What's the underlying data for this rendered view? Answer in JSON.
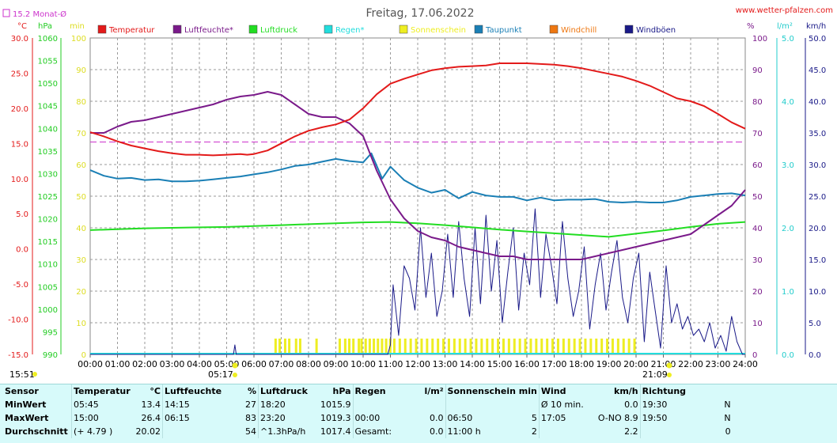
{
  "title": "Freitag, 17.06.2022",
  "website": "www.wetter-pfalzen.com",
  "monthly_avg_label": "15.2 Monat-Ø",
  "left_axis_units": [
    "°C",
    "hPa",
    "min"
  ],
  "right_axis_units": [
    "%",
    "l/m²",
    "km/h"
  ],
  "sunrise": {
    "time": "05:17"
  },
  "sunset": {
    "time": "21:09"
  },
  "moon_time": "15:51",
  "legend": [
    {
      "label": "Temperatur",
      "color": "#e31a1a"
    },
    {
      "label": "Luftfeuchte*",
      "color": "#7a1a8a"
    },
    {
      "label": "Luftdruck",
      "color": "#22dd22"
    },
    {
      "label": "Regen*",
      "color": "#22dddd"
    },
    {
      "label": "Sonnenschein",
      "color": "#eeee22"
    },
    {
      "label": "Taupunkt",
      "color": "#1a7fb5"
    },
    {
      "label": "Windchill",
      "color": "#ee7711"
    },
    {
      "label": "Windböen",
      "color": "#1a1a88"
    }
  ],
  "chart_data": {
    "type": "line",
    "title": "Freitag, 17.06.2022",
    "x_ticks": [
      "00:00",
      "01:00",
      "02:00",
      "03:00",
      "04:00",
      "05:00",
      "06:00",
      "07:00",
      "08:00",
      "09:00",
      "10:00",
      "11:00",
      "12:00",
      "13:00",
      "14:00",
      "15:00",
      "16:00",
      "17:00",
      "18:00",
      "19:00",
      "20:00",
      "21:00",
      "22:00",
      "23:00",
      "24:00"
    ],
    "axes": {
      "temperature_c": {
        "ticks": [
          "30.0",
          "25.0",
          "20.0",
          "15.0",
          "10.0",
          "5.0",
          "0.0",
          "-5.0",
          "-10.0",
          "-15.0"
        ],
        "range": [
          -15,
          30
        ]
      },
      "pressure_hpa": {
        "ticks": [
          "1060",
          "1055",
          "1050",
          "1045",
          "1040",
          "1035",
          "1030",
          "1025",
          "1020",
          "1015",
          "1010",
          "1005",
          "1000",
          "995",
          "990"
        ],
        "range": [
          990,
          1060
        ]
      },
      "sunshine_min": {
        "ticks": [
          "100",
          "90",
          "80",
          "70",
          "60",
          "50",
          "40",
          "30",
          "20",
          "10",
          "0"
        ],
        "range": [
          0,
          100
        ]
      },
      "humidity_pct": {
        "ticks": [
          "100",
          "90",
          "80",
          "70",
          "60",
          "50",
          "40",
          "30",
          "20",
          "10",
          "0"
        ],
        "range": [
          0,
          100
        ]
      },
      "rain_lm2": {
        "ticks": [
          "5.0",
          "4.0",
          "3.0",
          "2.0",
          "1.0",
          "0.0"
        ],
        "range": [
          0,
          5
        ]
      },
      "wind_kmh": {
        "ticks": [
          "50.0",
          "45.0",
          "40.0",
          "35.0",
          "30.0",
          "25.0",
          "20.0",
          "15.0",
          "10.0",
          "5.0",
          "0.0"
        ],
        "range": [
          0,
          50
        ]
      }
    },
    "grid": true,
    "monthly_avg_temperature": 15.2,
    "series": [
      {
        "name": "Temperatur",
        "axis": "temperature_c",
        "color": "#e31a1a",
        "x": [
          0,
          0.5,
          1,
          1.5,
          2,
          2.5,
          3,
          3.5,
          4,
          4.5,
          5,
          5.5,
          5.75,
          6,
          6.5,
          7,
          7.5,
          8,
          8.5,
          9,
          9.5,
          10,
          10.5,
          11,
          11.5,
          12,
          12.5,
          13,
          13.5,
          14,
          14.5,
          15,
          15.5,
          16,
          16.5,
          17,
          17.5,
          18,
          18.5,
          19,
          19.5,
          20,
          20.5,
          21,
          21.5,
          22,
          22.5,
          23,
          23.5,
          24
        ],
        "y": [
          16.6,
          16.0,
          15.3,
          14.7,
          14.3,
          13.9,
          13.6,
          13.4,
          13.4,
          13.3,
          13.4,
          13.5,
          13.4,
          13.5,
          14.0,
          15.0,
          16.0,
          16.8,
          17.3,
          17.7,
          18.4,
          20.0,
          22.0,
          23.5,
          24.2,
          24.8,
          25.4,
          25.7,
          25.9,
          26.0,
          26.1,
          26.4,
          26.4,
          26.4,
          26.3,
          26.2,
          26.0,
          25.7,
          25.3,
          24.9,
          24.5,
          23.9,
          23.2,
          22.3,
          21.4,
          21.0,
          20.3,
          19.2,
          18.0,
          17.1
        ]
      },
      {
        "name": "Luftfeuchte*",
        "axis": "humidity_pct",
        "color": "#7a1a8a",
        "x": [
          0,
          0.5,
          1,
          1.5,
          2,
          2.5,
          3,
          3.5,
          4,
          4.5,
          5,
          5.5,
          6,
          6.5,
          7,
          7.5,
          8,
          8.5,
          9,
          9.5,
          10,
          10.5,
          11,
          11.5,
          12,
          12.5,
          13,
          13.5,
          14,
          14.5,
          15,
          15.5,
          16,
          16.5,
          17,
          17.5,
          18,
          18.5,
          19,
          19.5,
          20,
          20.5,
          21,
          21.5,
          22,
          22.5,
          23,
          23.5,
          24
        ],
        "y": [
          70,
          70,
          72,
          73.5,
          74,
          75,
          76,
          77,
          78,
          79,
          80.5,
          81.5,
          82,
          83,
          82,
          79,
          76,
          75,
          75,
          73,
          69,
          58,
          49,
          43,
          39,
          37,
          36,
          34,
          33,
          32,
          31,
          31,
          30,
          30,
          30,
          30,
          30,
          31,
          32,
          33,
          34,
          35,
          36,
          37,
          38,
          41,
          44,
          47,
          52
        ]
      },
      {
        "name": "Luftdruck",
        "axis": "pressure_hpa",
        "color": "#22dd22",
        "x": [
          0,
          1,
          2,
          3,
          4,
          5,
          6,
          7,
          8,
          9,
          10,
          11,
          12,
          13,
          14,
          15,
          16,
          17,
          18,
          19,
          20,
          21,
          22,
          23,
          24
        ],
        "y": [
          1017.5,
          1017.7,
          1017.9,
          1018.0,
          1018.1,
          1018.2,
          1018.4,
          1018.6,
          1018.8,
          1019.0,
          1019.2,
          1019.3,
          1019.0,
          1018.6,
          1018.1,
          1017.6,
          1017.2,
          1016.8,
          1016.4,
          1016.0,
          1016.7,
          1017.4,
          1018.2,
          1018.9,
          1019.3
        ]
      },
      {
        "name": "Taupunkt",
        "axis": "temperature_c",
        "color": "#1a7fb5",
        "x": [
          0,
          0.5,
          1,
          1.5,
          2,
          2.5,
          3,
          3.5,
          4,
          4.5,
          5,
          5.5,
          6,
          6.5,
          7,
          7.5,
          8,
          8.5,
          9,
          9.5,
          10,
          10.3,
          10.7,
          11,
          11.5,
          12,
          12.5,
          13,
          13.5,
          14,
          14.5,
          15,
          15.5,
          16,
          16.5,
          17,
          17.5,
          18,
          18.5,
          19,
          19.5,
          20,
          20.5,
          21,
          21.5,
          22,
          22.5,
          23,
          23.5,
          24
        ],
        "y": [
          11.2,
          10.4,
          10.0,
          10.1,
          9.8,
          9.9,
          9.6,
          9.6,
          9.7,
          9.9,
          10.1,
          10.3,
          10.6,
          10.9,
          11.3,
          11.8,
          12.0,
          12.4,
          12.8,
          12.5,
          12.3,
          13.6,
          10.0,
          11.7,
          9.8,
          8.7,
          8.0,
          8.4,
          7.2,
          8.1,
          7.6,
          7.4,
          7.4,
          6.9,
          7.3,
          6.9,
          7.0,
          7.0,
          7.1,
          6.7,
          6.6,
          6.7,
          6.6,
          6.6,
          6.9,
          7.4,
          7.6,
          7.8,
          7.9,
          7.6
        ]
      },
      {
        "name": "Windböen",
        "axis": "wind_kmh",
        "color": "#1a1a88",
        "x": [
          0,
          5.25,
          5.3,
          5.35,
          10.9,
          11.0,
          11.1,
          11.3,
          11.5,
          11.7,
          11.9,
          12.1,
          12.3,
          12.5,
          12.7,
          12.9,
          13.1,
          13.3,
          13.5,
          13.7,
          13.9,
          14.1,
          14.3,
          14.5,
          14.7,
          14.9,
          15.1,
          15.3,
          15.5,
          15.7,
          15.9,
          16.1,
          16.3,
          16.5,
          16.7,
          16.9,
          17.1,
          17.3,
          17.5,
          17.7,
          17.9,
          18.1,
          18.3,
          18.5,
          18.7,
          18.9,
          19.1,
          19.3,
          19.5,
          19.7,
          19.9,
          20.1,
          20.3,
          20.5,
          20.7,
          20.9,
          21.1,
          21.3,
          21.5,
          21.7,
          21.9,
          22.1,
          22.3,
          22.5,
          22.7,
          22.9,
          23.1,
          23.3,
          23.5,
          23.7,
          23.9,
          24
        ],
        "y": [
          0,
          0,
          1.5,
          0,
          0,
          1.5,
          11,
          3,
          14,
          12,
          7,
          20,
          9,
          16,
          6,
          10,
          19,
          9,
          21,
          12,
          6,
          20,
          8,
          22,
          10,
          18,
          5,
          13,
          20,
          7,
          16,
          11,
          23,
          9,
          19,
          14,
          8,
          21,
          12,
          6,
          10,
          17,
          4,
          11,
          16,
          7,
          13,
          18,
          9,
          5,
          12,
          16,
          2,
          13,
          7,
          1,
          14,
          5,
          8,
          4,
          6,
          3,
          4,
          2,
          5,
          1,
          3,
          0.5,
          6,
          2,
          0,
          0
        ]
      }
    ],
    "sunshine": {
      "axis": "sunshine_min",
      "x": [
        6.75,
        6.9,
        7.1,
        7.25,
        7.5,
        7.65,
        8.25,
        9.1,
        9.3,
        9.45,
        9.6,
        9.8,
        9.9,
        10.05,
        10.2,
        10.35,
        10.5,
        10.65,
        10.8,
        10.95,
        11.1,
        11.3,
        11.5,
        11.7,
        11.9,
        12.1,
        12.3,
        12.5,
        12.7,
        12.9,
        13.1,
        13.3,
        13.5,
        13.7,
        13.9,
        14.1,
        14.3,
        14.5,
        14.7,
        14.9,
        15.1,
        15.3,
        15.5,
        15.7,
        15.9,
        16.1,
        16.3,
        16.5,
        16.7,
        16.9,
        17.1,
        17.3,
        17.5,
        17.7,
        17.9,
        18.1,
        18.3,
        18.5,
        18.7,
        18.9,
        19.1,
        19.3,
        19.5,
        19.7,
        19.9
      ],
      "y": [
        5,
        5,
        5,
        5,
        5,
        5,
        5,
        5,
        5,
        5,
        5,
        5,
        5,
        5,
        5,
        5,
        5,
        5,
        5,
        5,
        5,
        5,
        5,
        5,
        5,
        5,
        5,
        5,
        5,
        5,
        5,
        5,
        5,
        5,
        5,
        5,
        5,
        5,
        5,
        5,
        5,
        5,
        5,
        5,
        5,
        5,
        5,
        5,
        5,
        5,
        5,
        5,
        5,
        5,
        5,
        5,
        5,
        5,
        5,
        5,
        5,
        5,
        5,
        5,
        5
      ]
    }
  },
  "summary": {
    "headers": {
      "sensor": "Sensor",
      "temp": "Temperatur",
      "temp_unit": "°C",
      "hum": "Luftfeuchte",
      "hum_unit": "%",
      "press": "Luftdruck",
      "press_unit": "hPa",
      "rain": "Regen",
      "rain_unit": "l/m²",
      "sun": "Sonnenschein min",
      "wind": "Wind",
      "wind_unit": "km/h",
      "dir": "Richtung"
    },
    "rows": [
      {
        "label": "MinWert",
        "temp_time": "05:45",
        "temp_val": "13.4",
        "hum_time": "14:15",
        "hum_val": "27",
        "press_time": "18:20",
        "press_val": "1015.9",
        "rain_time": "",
        "rain_val": "",
        "sun_time": "",
        "sun_val": "",
        "wind_time": "Ø 10 min.",
        "wind_val": "0.0",
        "dir_time": "19:30",
        "dir_val": "N"
      },
      {
        "label": "MaxWert",
        "temp_time": "15:00",
        "temp_val": "26.4",
        "hum_time": "06:15",
        "hum_val": "83",
        "press_time": "23:20",
        "press_val": "1019.3",
        "rain_time": "00:00",
        "rain_val": "0.0",
        "sun_time": "06:50",
        "sun_val": "5",
        "wind_time": "17:05",
        "wind_val": "O-NO 8.9",
        "dir_time": "19:50",
        "dir_val": "N"
      },
      {
        "label": "Durchschnitt",
        "temp_time": "(+ 4.79 )",
        "temp_val": "20.02",
        "hum_time": "",
        "hum_val": "54",
        "press_time": "^1.3hPa/h",
        "press_val": "1017.4",
        "rain_time": "Gesamt:",
        "rain_val": "0.0",
        "sun_time": "11:00 h",
        "sun_val": "2",
        "wind_time": "",
        "wind_val": "2.2",
        "dir_time": "",
        "dir_val": "0"
      }
    ]
  }
}
